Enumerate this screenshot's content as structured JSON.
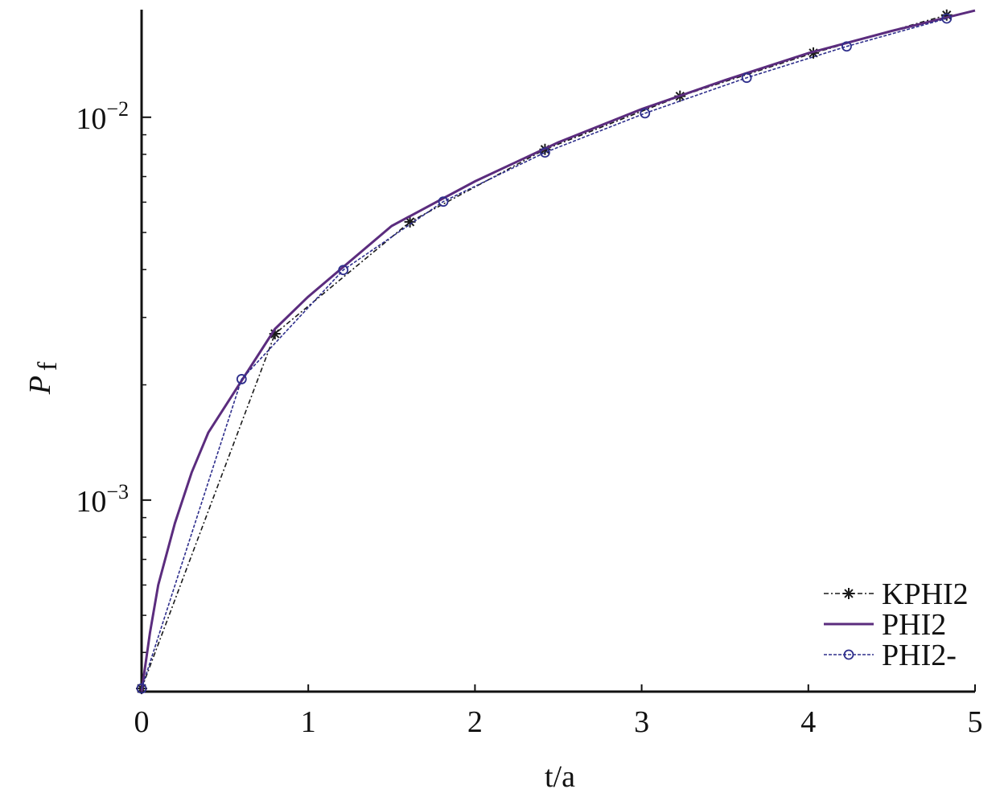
{
  "chart_data": {
    "type": "line",
    "xlabel": "t/a",
    "ylabel": "P",
    "ylabel_sub": "f",
    "xlim": [
      0,
      5
    ],
    "xticks": [
      0,
      1,
      2,
      3,
      4,
      5
    ],
    "ylim": [
      0.000316,
      0.0191
    ],
    "log_y": true,
    "yticks": [
      {
        "value": 0.001,
        "label": "10",
        "exponent": "−3"
      },
      {
        "value": 0.01,
        "label": "10",
        "exponent": "−2"
      }
    ],
    "yminorticks": [
      0.0004,
      0.0005,
      0.0006,
      0.0007,
      0.0008,
      0.0009,
      0.002,
      0.003,
      0.004,
      0.005,
      0.006,
      0.007,
      0.008,
      0.009
    ],
    "legend": "lower right",
    "series": [
      {
        "name": "KPHI2",
        "color": "#1a1a1a",
        "dash": "6,3,2,3",
        "marker": "star",
        "x": [
          0,
          0.8,
          1.61,
          2.42,
          3.23,
          4.03,
          4.83
        ],
        "values": [
          0.000322,
          0.00272,
          0.00533,
          0.00824,
          0.01135,
          0.01472,
          0.01849
        ]
      },
      {
        "name": "PHI2",
        "color": "#5b2c7e",
        "dash": "none",
        "marker": "none",
        "x": [
          0,
          0.05,
          0.1,
          0.2,
          0.3,
          0.4,
          0.6,
          0.8,
          1,
          1.5,
          2,
          2.5,
          3,
          3.5,
          4,
          4.5,
          5
        ],
        "values": [
          0.000316,
          0.00045,
          0.0006,
          0.00087,
          0.00118,
          0.0015,
          0.00205,
          0.0028,
          0.0034,
          0.0052,
          0.0068,
          0.0086,
          0.0105,
          0.0125,
          0.0147,
          0.0168,
          0.019
        ]
      },
      {
        "name": "PHI2-",
        "color": "#2e2e8c",
        "dash": "4,2",
        "marker": "circle",
        "x": [
          0,
          0.6,
          1.21,
          1.81,
          2.42,
          3.02,
          3.63,
          4.23,
          4.83
        ],
        "values": [
          0.000322,
          0.00207,
          0.00399,
          0.00602,
          0.00809,
          0.01024,
          0.01268,
          0.01531,
          0.01811
        ]
      }
    ]
  }
}
